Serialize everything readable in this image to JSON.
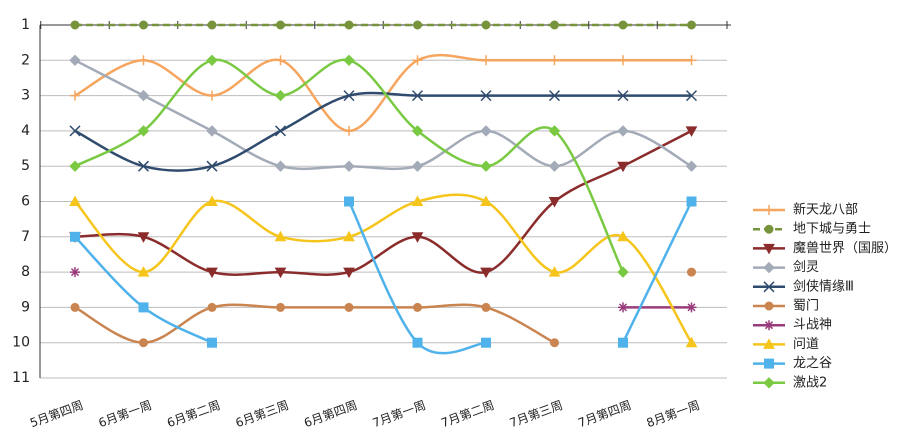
{
  "chart_data": {
    "type": "line",
    "categories": [
      "5月第四周",
      "6月第一周",
      "6月第二周",
      "6月第三周",
      "6月第四周",
      "7月第一周",
      "7月第二周",
      "7月第三周",
      "7月第四周",
      "8月第一周"
    ],
    "ylim": [
      1,
      11
    ],
    "yticks": [
      1,
      2,
      3,
      4,
      5,
      6,
      7,
      8,
      9,
      10,
      11
    ],
    "y_inverted": true,
    "grid": true,
    "smooth": true,
    "legend": "right",
    "series": [
      {
        "name": "新天龙八部",
        "color": "#f5a55e",
        "marker": "plus",
        "values": [
          3,
          2,
          3,
          2,
          4,
          2,
          2,
          2,
          2,
          2
        ]
      },
      {
        "name": "地下城与勇士",
        "color": "#77933c",
        "marker": "circle",
        "dash": true,
        "values": [
          1,
          1,
          1,
          1,
          1,
          1,
          1,
          1,
          1,
          1
        ]
      },
      {
        "name": "魔兽世界（国服）",
        "color": "#8b2c2c",
        "marker": "triangle-down",
        "values": [
          7,
          7,
          8,
          8,
          8,
          7,
          8,
          6,
          5,
          4
        ]
      },
      {
        "name": "剑灵",
        "color": "#a3abb8",
        "marker": "diamond",
        "values": [
          2,
          3,
          4,
          5,
          5,
          5,
          4,
          5,
          4,
          5
        ]
      },
      {
        "name": "剑侠情缘Ⅲ",
        "color": "#2f4b6e",
        "marker": "x",
        "values": [
          4,
          5,
          5,
          4,
          3,
          3,
          3,
          3,
          3,
          3
        ]
      },
      {
        "name": "蜀门",
        "color": "#c98450",
        "marker": "circle",
        "values": [
          9,
          10,
          9,
          9,
          9,
          9,
          9,
          10,
          null,
          8
        ]
      },
      {
        "name": "斗战神",
        "color": "#9a3b7b",
        "marker": "star",
        "values": [
          8,
          null,
          null,
          null,
          null,
          null,
          null,
          null,
          9,
          9
        ]
      },
      {
        "name": "问道",
        "color": "#f6c51c",
        "marker": "triangle-up",
        "values": [
          6,
          8,
          6,
          7,
          7,
          6,
          6,
          8,
          7,
          10
        ]
      },
      {
        "name": "龙之谷",
        "color": "#4fb2ea",
        "marker": "square",
        "values": [
          7,
          9,
          10,
          null,
          6,
          10,
          10,
          null,
          10,
          6
        ]
      },
      {
        "name": "激战2",
        "color": "#7ac943",
        "marker": "diamond",
        "values": [
          5,
          4,
          2,
          3,
          2,
          4,
          5,
          4,
          8,
          null
        ]
      }
    ]
  }
}
